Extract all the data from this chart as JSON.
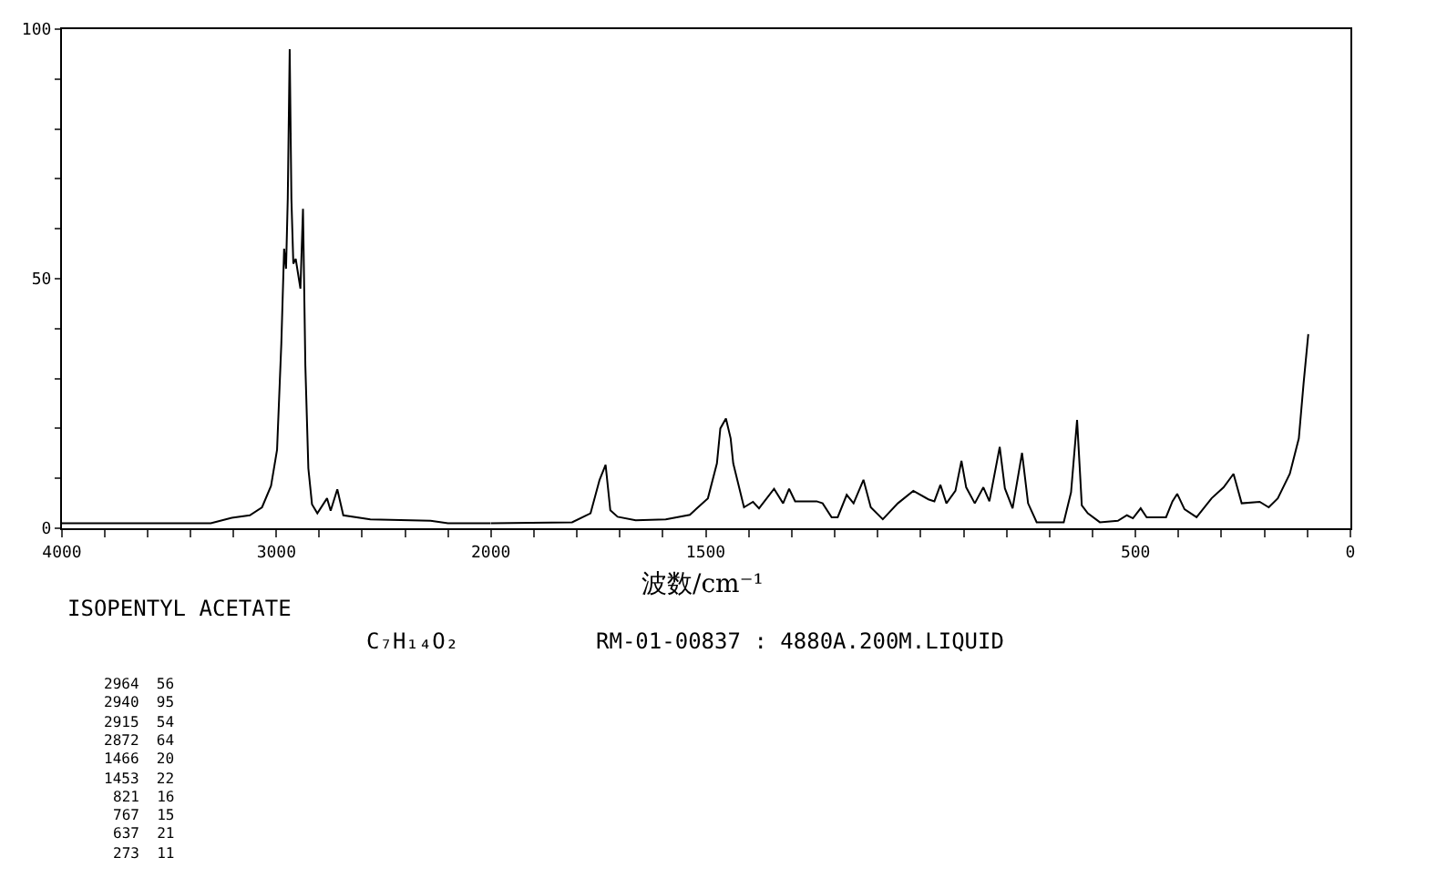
{
  "chart_data": [
    {
      "type": "line",
      "title": "ISOPENTYL ACETATE",
      "subtitle": "C₇H₁₄O₂",
      "annotations": [
        "RM-01-00837 : 4880A.200M.LIQUID",
        "2964  56",
        "2940  95",
        "2915  54",
        "2872  64",
        "1466  20",
        "1453  22",
        "821  16",
        "767  15",
        "637  21",
        "273  11"
      ],
      "xlim": [
        4000,
        2000
      ],
      "xticks": [
        4000,
        {
          "value": 3800,
          "label": null
        },
        {
          "value": 3600,
          "label": null
        },
        {
          "value": 3400,
          "label": null
        },
        {
          "value": 3200,
          "label": null
        },
        3000,
        {
          "value": 2800,
          "label": null
        },
        {
          "value": 2600,
          "label": null
        },
        {
          "value": 2400,
          "label": null
        },
        {
          "value": 2200,
          "label": null
        },
        2000
      ],
      "ylim": [
        0,
        100
      ],
      "yticks": [
        0,
        {
          "value": 10,
          "label": null
        },
        {
          "value": 20,
          "label": null
        },
        {
          "value": 30,
          "label": null
        },
        {
          "value": 40,
          "label": null
        },
        50,
        {
          "value": 60,
          "label": null
        },
        {
          "value": 70,
          "label": null
        },
        {
          "value": 80,
          "label": null
        },
        {
          "value": 90,
          "label": null
        },
        100
      ],
      "series": [
        {
          "color": "#000000",
          "x": [
            4000,
            3306,
            3208,
            3124,
            3067,
            3025,
            2997,
            2977,
            2964,
            2955,
            2947,
            2938,
            2930,
            2921,
            2910,
            2899,
            2888,
            2876,
            2865,
            2851,
            2834,
            2809,
            2764,
            2747,
            2716,
            2688,
            2562,
            2281,
            2200,
            2000
          ],
          "values": [
            1,
            1,
            2.1,
            2.6,
            4.2,
            8.5,
            15.7,
            37,
            56,
            52,
            66,
            96,
            66,
            53,
            54,
            51,
            48,
            64,
            32.6,
            12,
            4.8,
            3,
            6,
            3.5,
            7.8,
            2.6,
            1.8,
            1.5,
            1,
            1
          ]
        }
      ]
    },
    {
      "type": "line",
      "xlabel": "波数/cm⁻¹",
      "tick_labels": "x",
      "xlim": [
        2000,
        0
      ],
      "xticks": [
        {
          "value": 2000,
          "label": null
        },
        {
          "value": 1900,
          "label": null
        },
        {
          "value": 1800,
          "label": null
        },
        {
          "value": 1700,
          "label": null
        },
        {
          "value": 1600,
          "label": null
        },
        1500,
        {
          "value": 1400,
          "label": null
        },
        {
          "value": 1300,
          "label": null
        },
        {
          "value": 1200,
          "label": null
        },
        {
          "value": 1100,
          "label": null
        },
        {
          "value": 1000,
          "label": null
        },
        {
          "value": 900,
          "label": null
        },
        {
          "value": 800,
          "label": null
        },
        {
          "value": 700,
          "label": null
        },
        {
          "value": 600,
          "label": null
        },
        500,
        {
          "value": 400,
          "label": null
        },
        {
          "value": 300,
          "label": null
        },
        {
          "value": 200,
          "label": null
        },
        {
          "value": 100,
          "label": null
        },
        0
      ],
      "ylim": [
        0,
        100
      ],
      "yticks": [
        0,
        50,
        100
      ],
      "series": [
        {
          "color": "#000000",
          "x": [
            2000,
            1811,
            1768,
            1747,
            1733,
            1722,
            1705,
            1663,
            1593,
            1537,
            1495,
            1474,
            1466,
            1453,
            1442,
            1436,
            1411,
            1390,
            1376,
            1341,
            1320,
            1306,
            1292,
            1242,
            1228,
            1207,
            1193,
            1172,
            1156,
            1133,
            1116,
            1088,
            1053,
            1017,
            982,
            968,
            954,
            940,
            919,
            905,
            894,
            874,
            854,
            840,
            816,
            804,
            786,
            764,
            750,
            730,
            667,
            650,
            636,
            625,
            611,
            583,
            541,
            520,
            506,
            488,
            474,
            429,
            414,
            403,
            386,
            358,
            323,
            295,
            272,
            253,
            211,
            190,
            169,
            141,
            120,
            109,
            98
          ],
          "values": [
            1,
            1.2,
            3,
            9.7,
            12.7,
            3.6,
            2.3,
            1.6,
            1.8,
            2.7,
            6,
            13,
            20,
            22,
            18,
            13,
            4.2,
            5.3,
            4,
            7.9,
            5,
            7.9,
            5.4,
            5.4,
            5,
            2.2,
            2.2,
            6.7,
            5,
            9.7,
            4.2,
            1.8,
            5,
            7.5,
            5.8,
            5.4,
            8.7,
            5,
            7.5,
            13.5,
            8.2,
            5,
            8.2,
            5.4,
            16.3,
            8,
            4,
            15.1,
            5,
            1.2,
            1.2,
            7.2,
            21.7,
            4.6,
            3,
            1.2,
            1.5,
            2.6,
            2,
            4,
            2.2,
            2.2,
            5.4,
            6.9,
            3.8,
            2.2,
            6,
            8.2,
            10.9,
            5,
            5.3,
            4.2,
            6,
            10.9,
            18,
            29,
            38.9
          ]
        }
      ]
    }
  ]
}
